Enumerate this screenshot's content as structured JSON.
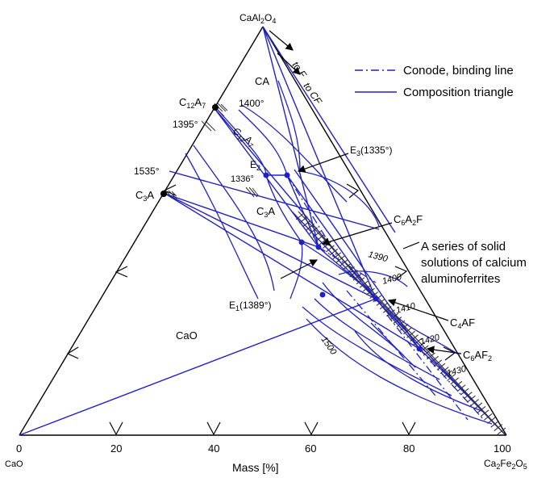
{
  "vertices": {
    "bottom_left": "CaO",
    "top": "CaAl₂O₄",
    "bottom_right": "Ca₂Fe₂O₅"
  },
  "axis": {
    "label": "Mass [%]",
    "ticks": [
      "0",
      "20",
      "40",
      "60",
      "80",
      "100"
    ]
  },
  "legend": {
    "items": [
      {
        "label": "Conode, binding line",
        "style": "dash-dot"
      },
      {
        "label": "Composition triangle",
        "style": "solid"
      }
    ]
  },
  "phase_fields": {
    "ca": "CA",
    "cao": "CaO",
    "c3a": "C₃A",
    "c12a7_field": "C₁₂A₇"
  },
  "compounds": {
    "c12a7": "C₁₂A₇",
    "c3a": "C₃A",
    "c6a2f": "C₆A₂F",
    "c4af": "C₄AF",
    "c6af2": "C₆AF₂"
  },
  "points": {
    "e1": "E₁(1389°)",
    "e2": "E₂",
    "e2_temp": "1336°",
    "e3": "E₃(1335°)"
  },
  "temperatures": {
    "t1400": "1400°",
    "t1395": "1395°",
    "t1535": "1535°"
  },
  "isotherms": [
    "1390",
    "1400",
    "1410",
    "1420",
    "1430",
    "1500"
  ],
  "arrows": {
    "to_f": "to F",
    "to_cf": "to CF"
  },
  "annotation": [
    "A series of solid",
    "solutions of calcium",
    "aluminoferrites"
  ],
  "colors": {
    "line": "#2020c8",
    "outline": "#000000"
  }
}
